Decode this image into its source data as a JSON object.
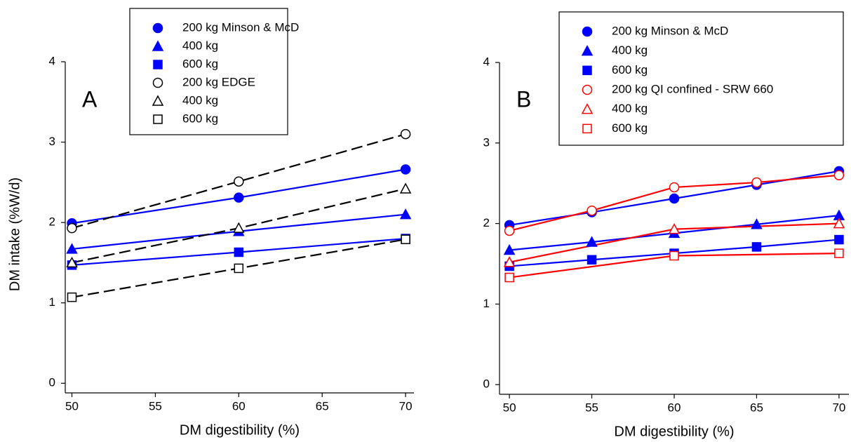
{
  "chart_data": [
    {
      "type": "line",
      "panel_label": "A",
      "ylabel": "DM intake (%W/d)",
      "xlabel": "DM digestibility (%)",
      "xlim": [
        49.6,
        70.5
      ],
      "ylim": [
        -0.12,
        4
      ],
      "xticks": [
        50,
        55,
        60,
        65,
        70
      ],
      "yticks": [
        0,
        1,
        2,
        3,
        4
      ],
      "legend": "upper center",
      "series": [
        {
          "name": "200 kg Minson & McD",
          "color": "#0000ff",
          "marker": "circle",
          "filled": true,
          "dashed": false,
          "x": [
            50,
            60,
            70
          ],
          "values": [
            1.99,
            2.31,
            2.66
          ]
        },
        {
          "name": "400 kg",
          "color": "#0000ff",
          "marker": "triangle",
          "filled": true,
          "dashed": false,
          "x": [
            50,
            60,
            70
          ],
          "values": [
            1.67,
            1.89,
            2.1
          ]
        },
        {
          "name": "600 kg",
          "color": "#0000ff",
          "marker": "square",
          "filled": true,
          "dashed": false,
          "x": [
            50,
            60,
            70
          ],
          "values": [
            1.47,
            1.63,
            1.8
          ]
        },
        {
          "name": "200 kg EDGE",
          "color": "#000000",
          "marker": "circle",
          "filled": false,
          "dashed": true,
          "x": [
            50,
            60,
            70
          ],
          "values": [
            1.93,
            2.51,
            3.1
          ]
        },
        {
          "name": "400 kg",
          "color": "#000000",
          "marker": "triangle",
          "filled": false,
          "dashed": true,
          "x": [
            50,
            60,
            70
          ],
          "values": [
            1.5,
            1.93,
            2.42
          ]
        },
        {
          "name": "600 kg",
          "color": "#000000",
          "marker": "square",
          "filled": false,
          "dashed": true,
          "x": [
            50,
            60,
            70
          ],
          "values": [
            1.07,
            1.43,
            1.79
          ]
        }
      ]
    },
    {
      "type": "line",
      "panel_label": "B",
      "xlabel": "DM digestibility (%)",
      "xlim": [
        49.4,
        70.6
      ],
      "ylim": [
        -0.12,
        4
      ],
      "xticks": [
        50,
        55,
        60,
        65,
        70
      ],
      "yticks": [
        0,
        1,
        2,
        3,
        4
      ],
      "legend": "upper right",
      "series": [
        {
          "name": "200 kg Minson & McD",
          "color": "#0000ff",
          "marker": "circle",
          "filled": true,
          "dashed": false,
          "x": [
            50,
            55,
            60,
            65,
            70
          ],
          "values": [
            1.98,
            2.14,
            2.31,
            2.48,
            2.65
          ]
        },
        {
          "name": "400 kg",
          "color": "#0000ff",
          "marker": "triangle",
          "filled": true,
          "dashed": false,
          "x": [
            50,
            55,
            60,
            65,
            70
          ],
          "values": [
            1.67,
            1.77,
            1.88,
            1.99,
            2.1
          ]
        },
        {
          "name": "600 kg",
          "color": "#0000ff",
          "marker": "square",
          "filled": true,
          "dashed": false,
          "x": [
            50,
            55,
            60,
            65,
            70
          ],
          "values": [
            1.47,
            1.55,
            1.63,
            1.71,
            1.8
          ]
        },
        {
          "name": "200 kg QI confined - SRW 660",
          "color": "#ff0000",
          "marker": "circle",
          "filled": false,
          "dashed": false,
          "x": [
            50,
            55,
            60,
            65,
            70
          ],
          "values": [
            1.91,
            2.16,
            2.45,
            2.51,
            2.6
          ]
        },
        {
          "name": "400 kg",
          "color": "#ff0000",
          "marker": "triangle",
          "filled": false,
          "dashed": false,
          "x": [
            50,
            60,
            70
          ],
          "values": [
            1.52,
            1.93,
            2.0
          ]
        },
        {
          "name": "600 kg",
          "color": "#ff0000",
          "marker": "square",
          "filled": false,
          "dashed": false,
          "x": [
            50,
            60,
            70
          ],
          "values": [
            1.33,
            1.6,
            1.63
          ]
        }
      ]
    }
  ]
}
